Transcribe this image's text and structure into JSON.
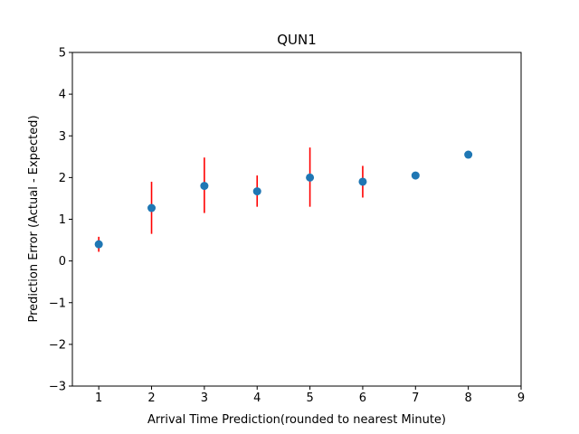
{
  "chart_data": {
    "type": "scatter",
    "title": "QUN1",
    "xlabel": "Arrival Time Prediction(rounded to nearest Minute)",
    "ylabel": "Prediction Error (Actual - Expected)",
    "xlim": [
      0.5,
      9
    ],
    "ylim": [
      -3,
      5
    ],
    "xticks": [
      1,
      2,
      3,
      4,
      5,
      6,
      7,
      8,
      9
    ],
    "yticks": [
      -3,
      -2,
      -1,
      0,
      1,
      2,
      3,
      4,
      5
    ],
    "grid": false,
    "legend": "none",
    "series": [
      {
        "x": [
          1,
          2,
          3,
          4,
          5,
          6,
          7,
          8
        ],
        "y": [
          0.4,
          1.27,
          1.8,
          1.67,
          2.0,
          1.9,
          2.05,
          2.55
        ],
        "error_low": [
          0.22,
          0.65,
          1.15,
          1.3,
          1.3,
          1.52,
          null,
          null
        ],
        "error_high": [
          0.58,
          1.9,
          2.48,
          2.05,
          2.72,
          2.28,
          null,
          null
        ]
      }
    ],
    "colors": {
      "marker": "#1f77b4",
      "error_bar": "#ff0000",
      "axis": "#000000"
    }
  }
}
